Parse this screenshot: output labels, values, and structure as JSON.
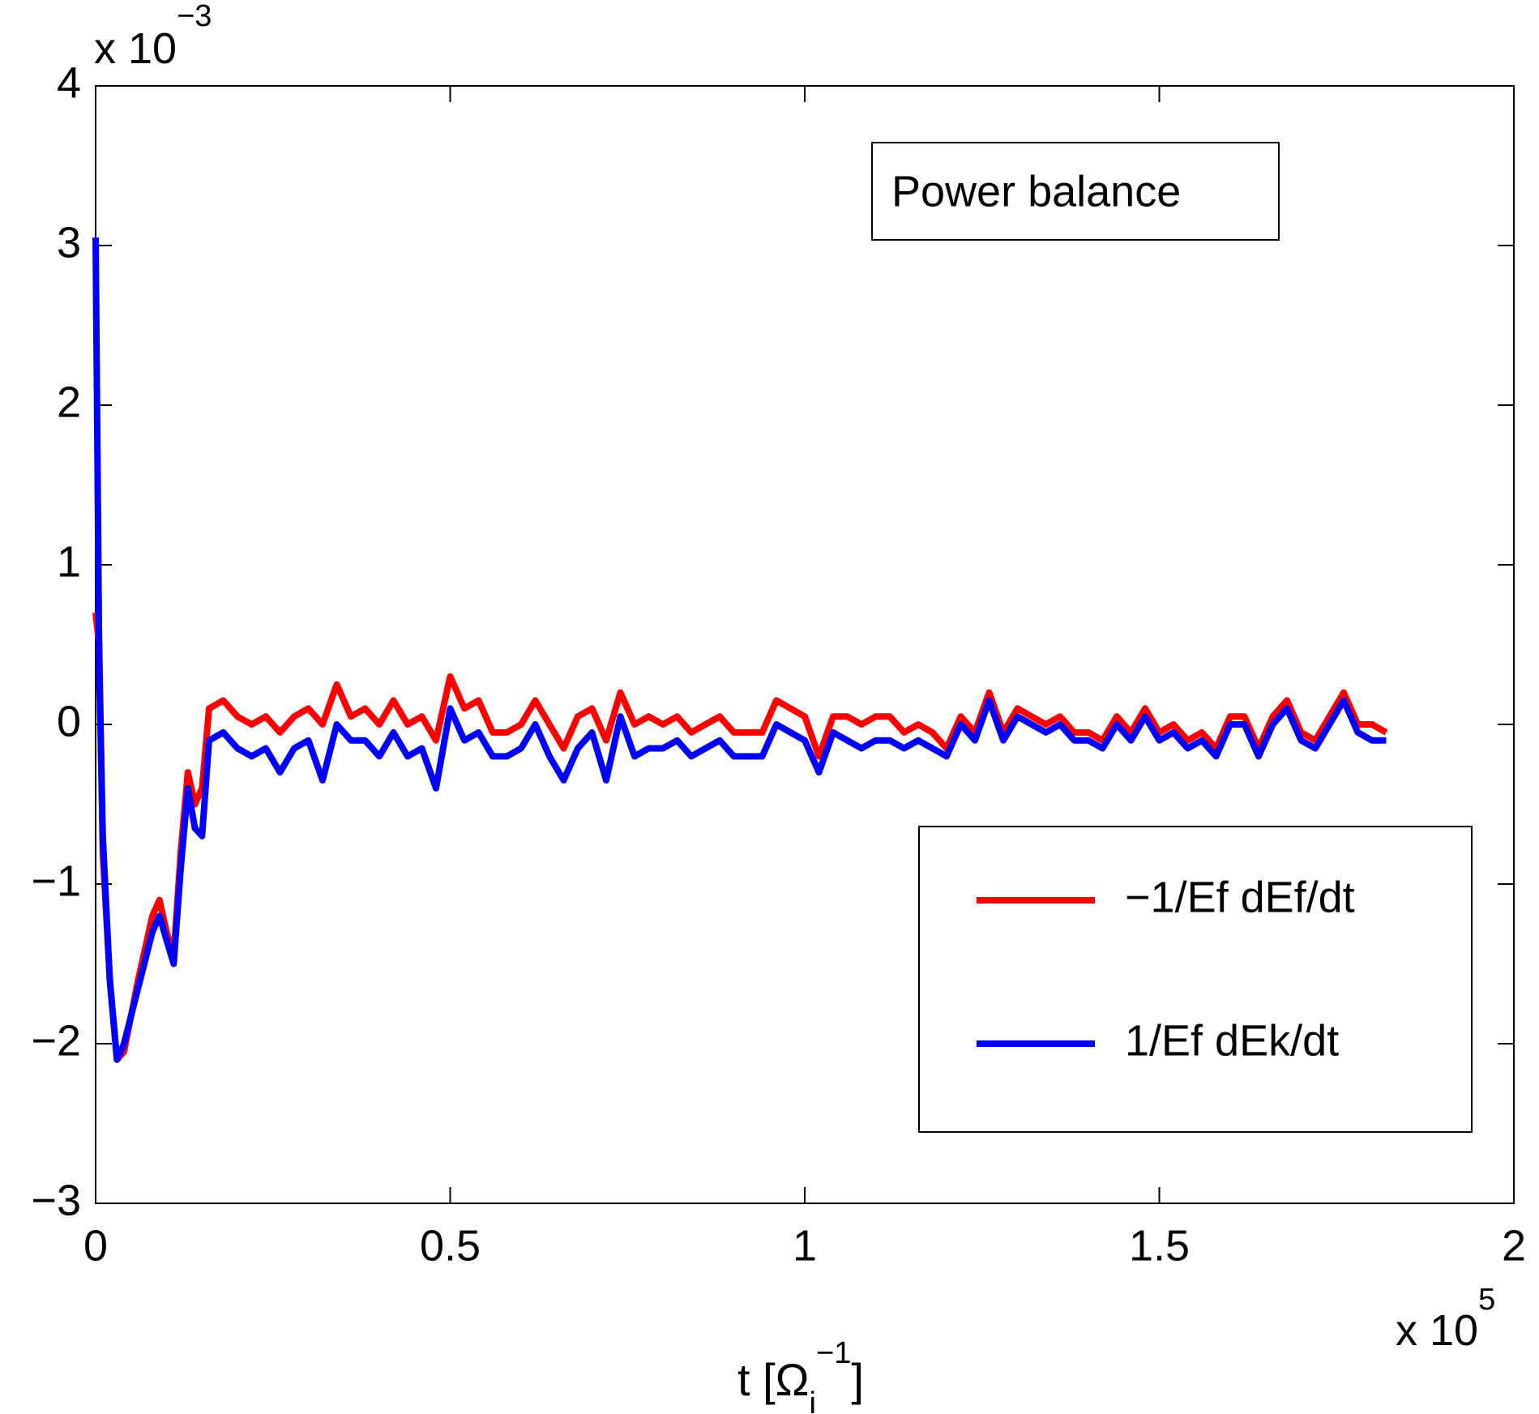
{
  "chart_data": {
    "type": "line",
    "title": "Power balance",
    "x_label": {
      "main": "t [Ω",
      "sub": "i",
      "sup": "−1",
      "end": "]"
    },
    "x_multiplier": {
      "base": "x 10",
      "exponent": "5"
    },
    "y_multiplier": {
      "base": "x 10",
      "exponent": "−3"
    },
    "xlim": [
      0,
      2
    ],
    "xticks": [
      0,
      0.5,
      1,
      1.5,
      2
    ],
    "ylim": [
      -3,
      4
    ],
    "yticks": [
      {
        "value": -3,
        "label": "−3"
      },
      {
        "value": -2,
        "label": "−2"
      },
      {
        "value": -1,
        "label": "−1"
      },
      0,
      1,
      2,
      3,
      4
    ],
    "grid": false,
    "legend": "lower right",
    "x": [
      0,
      0.005,
      0.01,
      0.02,
      0.03,
      0.04,
      0.06,
      0.08,
      0.09,
      0.1,
      0.11,
      0.12,
      0.13,
      0.14,
      0.15,
      0.16,
      0.18,
      0.2,
      0.22,
      0.24,
      0.26,
      0.28,
      0.3,
      0.32,
      0.34,
      0.36,
      0.38,
      0.4,
      0.42,
      0.44,
      0.46,
      0.48,
      0.5,
      0.52,
      0.54,
      0.56,
      0.58,
      0.6,
      0.62,
      0.64,
      0.66,
      0.68,
      0.7,
      0.72,
      0.74,
      0.76,
      0.78,
      0.8,
      0.82,
      0.84,
      0.86,
      0.88,
      0.9,
      0.92,
      0.94,
      0.96,
      0.98,
      1.0,
      1.02,
      1.04,
      1.06,
      1.08,
      1.1,
      1.12,
      1.14,
      1.16,
      1.18,
      1.2,
      1.22,
      1.24,
      1.26,
      1.28,
      1.3,
      1.32,
      1.34,
      1.36,
      1.38,
      1.4,
      1.42,
      1.44,
      1.46,
      1.48,
      1.5,
      1.52,
      1.54,
      1.56,
      1.58,
      1.6,
      1.62,
      1.64,
      1.66,
      1.68,
      1.7,
      1.72,
      1.74,
      1.76,
      1.78,
      1.8,
      1.82
    ],
    "series": [
      {
        "name": "−1/Ef dEf/dt",
        "color": "#ff0000",
        "values": [
          0.7,
          0.5,
          -0.8,
          -1.6,
          -2.1,
          -2.05,
          -1.6,
          -1.2,
          -1.1,
          -1.3,
          -1.45,
          -0.8,
          -0.3,
          -0.5,
          -0.4,
          0.1,
          0.15,
          0.05,
          0.0,
          0.05,
          -0.05,
          0.05,
          0.1,
          0.0,
          0.25,
          0.05,
          0.1,
          0.0,
          0.15,
          0.0,
          0.05,
          -0.1,
          0.3,
          0.1,
          0.15,
          -0.05,
          -0.05,
          0.0,
          0.15,
          0.0,
          -0.15,
          0.05,
          0.1,
          -0.1,
          0.2,
          0.0,
          0.05,
          0.0,
          0.05,
          -0.05,
          0.0,
          0.05,
          -0.05,
          -0.05,
          -0.05,
          0.15,
          0.1,
          0.05,
          -0.2,
          0.05,
          0.05,
          0.0,
          0.05,
          0.05,
          -0.05,
          0.0,
          -0.05,
          -0.15,
          0.05,
          -0.05,
          0.2,
          -0.05,
          0.1,
          0.05,
          0.0,
          0.05,
          -0.05,
          -0.05,
          -0.1,
          0.05,
          -0.05,
          0.1,
          -0.05,
          0.0,
          -0.1,
          -0.05,
          -0.15,
          0.05,
          0.05,
          -0.15,
          0.05,
          0.15,
          -0.05,
          -0.1,
          0.05,
          0.2,
          0.0,
          0.0,
          -0.05
        ]
      },
      {
        "name": "1/Ef dEk/dt",
        "color": "#0000ff",
        "values": [
          3.05,
          0.4,
          -0.7,
          -1.6,
          -2.1,
          -2.0,
          -1.65,
          -1.3,
          -1.2,
          -1.35,
          -1.5,
          -0.9,
          -0.4,
          -0.65,
          -0.7,
          -0.1,
          -0.05,
          -0.15,
          -0.2,
          -0.15,
          -0.3,
          -0.15,
          -0.1,
          -0.35,
          0.0,
          -0.1,
          -0.1,
          -0.2,
          -0.05,
          -0.2,
          -0.15,
          -0.4,
          0.1,
          -0.1,
          -0.05,
          -0.2,
          -0.2,
          -0.15,
          0.0,
          -0.2,
          -0.35,
          -0.15,
          -0.05,
          -0.35,
          0.05,
          -0.2,
          -0.15,
          -0.15,
          -0.1,
          -0.2,
          -0.15,
          -0.1,
          -0.2,
          -0.2,
          -0.2,
          0.0,
          -0.05,
          -0.1,
          -0.3,
          -0.05,
          -0.1,
          -0.15,
          -0.1,
          -0.1,
          -0.15,
          -0.1,
          -0.15,
          -0.2,
          0.0,
          -0.1,
          0.15,
          -0.1,
          0.05,
          0.0,
          -0.05,
          0.0,
          -0.1,
          -0.1,
          -0.15,
          0.0,
          -0.1,
          0.05,
          -0.1,
          -0.05,
          -0.15,
          -0.1,
          -0.2,
          0.0,
          0.0,
          -0.2,
          0.0,
          0.1,
          -0.1,
          -0.15,
          0.0,
          0.15,
          -0.05,
          -0.1,
          -0.1
        ]
      }
    ]
  }
}
